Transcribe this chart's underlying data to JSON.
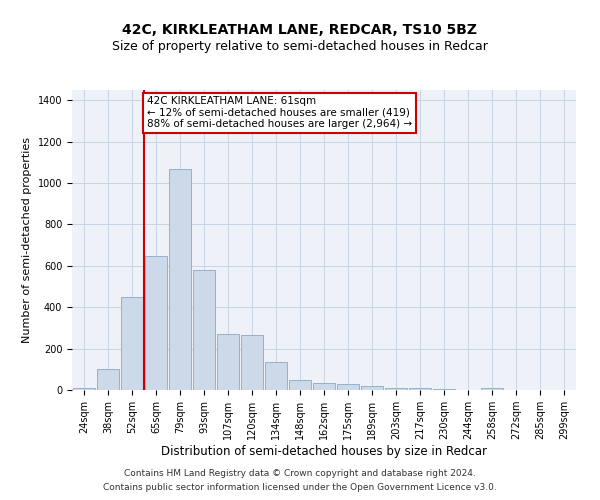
{
  "title": "42C, KIRKLEATHAM LANE, REDCAR, TS10 5BZ",
  "subtitle": "Size of property relative to semi-detached houses in Redcar",
  "xlabel": "Distribution of semi-detached houses by size in Redcar",
  "ylabel": "Number of semi-detached properties",
  "footnote1": "Contains HM Land Registry data © Crown copyright and database right 2024.",
  "footnote2": "Contains public sector information licensed under the Open Government Licence v3.0.",
  "annotation_line1": "42C KIRKLEATHAM LANE: 61sqm",
  "annotation_line2": "← 12% of semi-detached houses are smaller (419)",
  "annotation_line3": "88% of semi-detached houses are larger (2,964) →",
  "bar_color": "#ccd9e8",
  "bar_edge_color": "#7a9dbe",
  "red_line_color": "#cc0000",
  "annotation_box_color": "#cc0000",
  "categories": [
    "24sqm",
    "38sqm",
    "52sqm",
    "65sqm",
    "79sqm",
    "93sqm",
    "107sqm",
    "120sqm",
    "134sqm",
    "148sqm",
    "162sqm",
    "175sqm",
    "189sqm",
    "203sqm",
    "217sqm",
    "230sqm",
    "244sqm",
    "258sqm",
    "272sqm",
    "285sqm",
    "299sqm"
  ],
  "values": [
    10,
    100,
    450,
    650,
    1070,
    580,
    270,
    265,
    135,
    50,
    35,
    30,
    18,
    12,
    8,
    6,
    0,
    10,
    0,
    0,
    0
  ],
  "xlim_left": -0.5,
  "xlim_right": 20.5,
  "ylim": [
    0,
    1450
  ],
  "yticks": [
    0,
    200,
    400,
    600,
    800,
    1000,
    1200,
    1400
  ],
  "red_line_x": 2.5,
  "title_fontsize": 10,
  "subtitle_fontsize": 9,
  "xlabel_fontsize": 8.5,
  "ylabel_fontsize": 8,
  "tick_fontsize": 7,
  "annotation_fontsize": 7.5,
  "footnote_fontsize": 6.5,
  "bg_color": "#eef2f8"
}
